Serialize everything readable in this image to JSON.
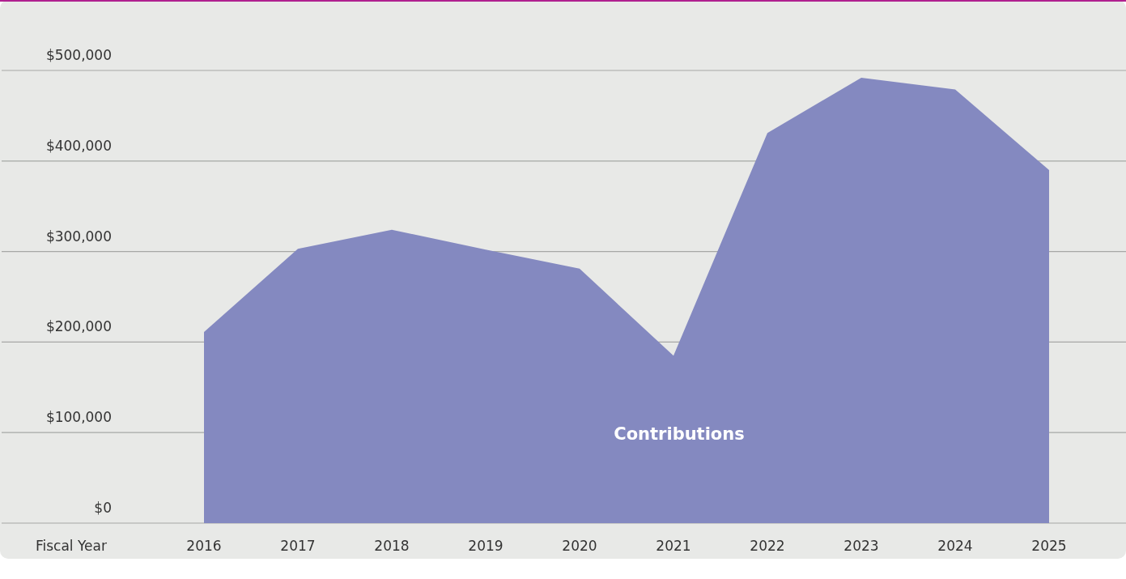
{
  "chart_data": {
    "type": "area",
    "xlabel": "Fiscal Year",
    "categories": [
      "2016",
      "2017",
      "2018",
      "2019",
      "2020",
      "2021",
      "2022",
      "2023",
      "2024",
      "2025"
    ],
    "series": [
      {
        "name": "Contributions",
        "color": "#8489c0",
        "values": [
          211000,
          303000,
          324000,
          302000,
          281000,
          185000,
          431000,
          492000,
          479000,
          390000
        ]
      }
    ],
    "ylim": [
      0,
      500000
    ],
    "yticks": [
      {
        "value": 0,
        "label": "$0"
      },
      {
        "value": 100000,
        "label": "$100,000"
      },
      {
        "value": 200000,
        "label": "$200,000"
      },
      {
        "value": 300000,
        "label": "$300,000"
      },
      {
        "value": 400000,
        "label": "$400,000"
      },
      {
        "value": 500000,
        "label": "$500,000"
      }
    ],
    "grid": "y"
  }
}
